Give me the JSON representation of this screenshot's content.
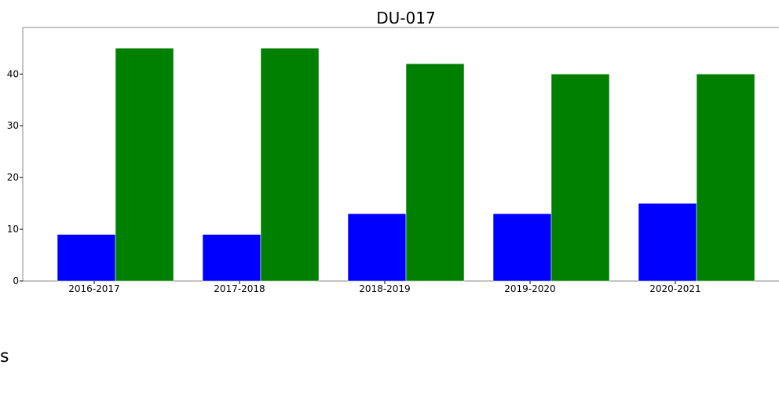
{
  "chart_data": {
    "type": "bar",
    "title": "DU-017",
    "xlabel": "",
    "ylabel": "",
    "categories": [
      "2016-2017",
      "2017-2018",
      "2018-2019",
      "2019-2020",
      "2020-2021"
    ],
    "series": [
      {
        "values": [
          9,
          9,
          13,
          13,
          15
        ],
        "color": "#0000ff"
      },
      {
        "values": [
          45,
          45,
          42,
          40,
          40
        ],
        "color": "#008000"
      }
    ],
    "ylim": [
      0,
      49
    ],
    "yticks": [
      0,
      10,
      20,
      30,
      40
    ],
    "grid": false,
    "legend": "none"
  },
  "footer": {
    "stray_text": "s"
  },
  "colors": {
    "axis": "#888888",
    "bar_edge": "#ffffff"
  }
}
